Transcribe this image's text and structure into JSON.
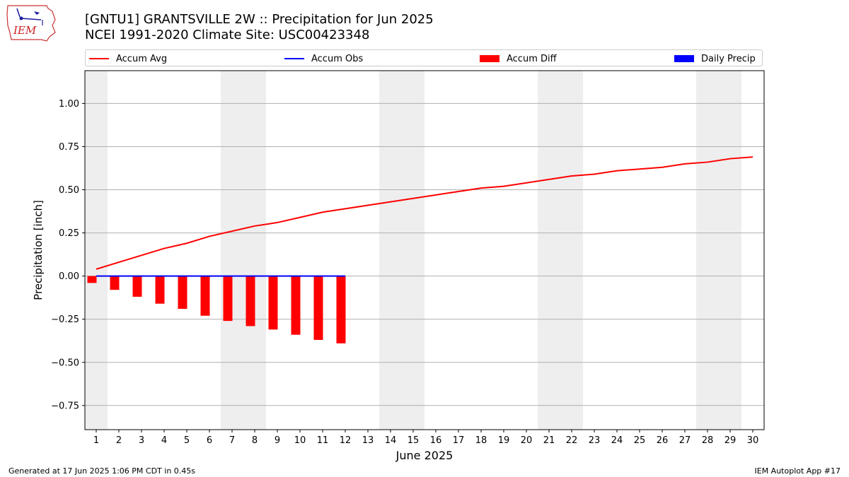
{
  "header": {
    "title_line1": "[GNTU1] GRANTSVILLE 2W :: Precipitation for Jun 2025",
    "title_line2": "NCEI 1991-2020 Climate Site: USC00423348",
    "logo_text": "IEM"
  },
  "legend": {
    "items": [
      {
        "label": "Accum Avg",
        "color": "#ff0000",
        "kind": "line"
      },
      {
        "label": "Accum Obs",
        "color": "#0000ff",
        "kind": "line"
      },
      {
        "label": "Accum Diff",
        "color": "#ff0000",
        "kind": "box"
      },
      {
        "label": "Daily Precip",
        "color": "#0000ff",
        "kind": "box"
      }
    ]
  },
  "footer": {
    "left": "Generated at 17 Jun 2025 1:06 PM CDT in 0.45s",
    "right": "IEM Autoplot App #17"
  },
  "colors": {
    "weekend_shade": "#eeeeee",
    "grid": "#b0b0b0",
    "avg": "#ff0000",
    "obs": "#0000ff",
    "diff": "#ff0000",
    "daily": "#0000ff"
  },
  "chart_data": {
    "type": "bar",
    "xlabel": "June 2025",
    "ylabel": "Precipitation [inch]",
    "x": [
      1,
      2,
      3,
      4,
      5,
      6,
      7,
      8,
      9,
      10,
      11,
      12,
      13,
      14,
      15,
      16,
      17,
      18,
      19,
      20,
      21,
      22,
      23,
      24,
      25,
      26,
      27,
      28,
      29,
      30
    ],
    "xlim": [
      0.5,
      30.5
    ],
    "ylim": [
      -0.89,
      1.19
    ],
    "yticks": [
      -0.75,
      -0.5,
      -0.25,
      0.0,
      0.25,
      0.5,
      0.75,
      1.0
    ],
    "ytick_labels": [
      "−0.75",
      "−0.50",
      "−0.25",
      "0.00",
      "0.25",
      "0.50",
      "0.75",
      "1.00"
    ],
    "grid": true,
    "legend_position": "top",
    "weekend_shading": [
      [
        0.5,
        1.5
      ],
      [
        6.5,
        8.5
      ],
      [
        13.5,
        15.5
      ],
      [
        20.5,
        22.5
      ],
      [
        27.5,
        29.5
      ]
    ],
    "series": [
      {
        "name": "Accum Avg",
        "kind": "line",
        "x": [
          1,
          2,
          3,
          4,
          5,
          6,
          7,
          8,
          9,
          10,
          11,
          12,
          13,
          14,
          15,
          16,
          17,
          18,
          19,
          20,
          21,
          22,
          23,
          24,
          25,
          26,
          27,
          28,
          29,
          30
        ],
        "values": [
          0.04,
          0.08,
          0.12,
          0.16,
          0.19,
          0.23,
          0.26,
          0.29,
          0.31,
          0.34,
          0.37,
          0.39,
          0.41,
          0.43,
          0.45,
          0.47,
          0.49,
          0.51,
          0.52,
          0.54,
          0.56,
          0.58,
          0.59,
          0.61,
          0.62,
          0.63,
          0.65,
          0.66,
          0.68,
          0.69
        ]
      },
      {
        "name": "Accum Obs",
        "kind": "line",
        "x": [
          1,
          2,
          3,
          4,
          5,
          6,
          7,
          8,
          9,
          10,
          11,
          12
        ],
        "values": [
          0,
          0,
          0,
          0,
          0,
          0,
          0,
          0,
          0,
          0,
          0,
          0
        ]
      },
      {
        "name": "Accum Diff",
        "kind": "bar",
        "x": [
          1,
          2,
          3,
          4,
          5,
          6,
          7,
          8,
          9,
          10,
          11,
          12
        ],
        "values": [
          -0.04,
          -0.08,
          -0.12,
          -0.16,
          -0.19,
          -0.23,
          -0.26,
          -0.29,
          -0.31,
          -0.34,
          -0.37,
          -0.39
        ]
      },
      {
        "name": "Daily Precip",
        "kind": "bar",
        "x": [
          1,
          2,
          3,
          4,
          5,
          6,
          7,
          8,
          9,
          10,
          11,
          12
        ],
        "values": [
          0,
          0,
          0,
          0,
          0,
          0,
          0,
          0,
          0,
          0,
          0,
          0
        ]
      }
    ]
  }
}
